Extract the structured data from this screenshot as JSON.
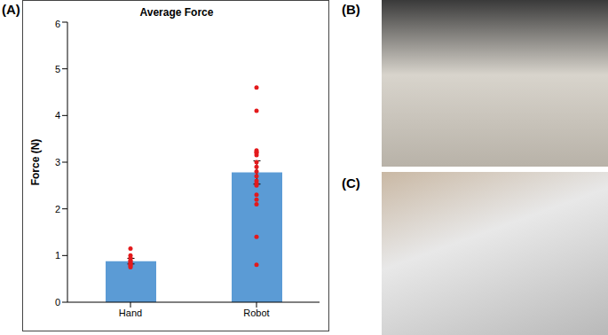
{
  "panels": [
    "(A)",
    "(B)",
    "(C)"
  ],
  "chart_data": {
    "type": "bar",
    "title": "Average Force",
    "ylabel": "Force (N)",
    "categories": [
      "Hand",
      "Robot"
    ],
    "values": [
      0.88,
      2.78
    ],
    "errors": [
      0.06,
      0.25
    ],
    "color": "#5b9bd5",
    "points": {
      "type": "scatter",
      "color": "#e31a1c",
      "values": [
        [
          1.15,
          1.0,
          0.95,
          0.9,
          0.88,
          0.85,
          0.82,
          0.8,
          0.78,
          0.75
        ],
        [
          4.6,
          4.1,
          3.25,
          3.22,
          3.2,
          3.15,
          3.0,
          2.9,
          2.8,
          2.7,
          2.6,
          2.55,
          2.5,
          2.3,
          2.2,
          2.1,
          1.4,
          0.8
        ]
      ]
    },
    "ylim": [
      0,
      6
    ],
    "yticks": [
      0,
      1,
      2,
      3,
      4,
      5,
      6
    ]
  }
}
